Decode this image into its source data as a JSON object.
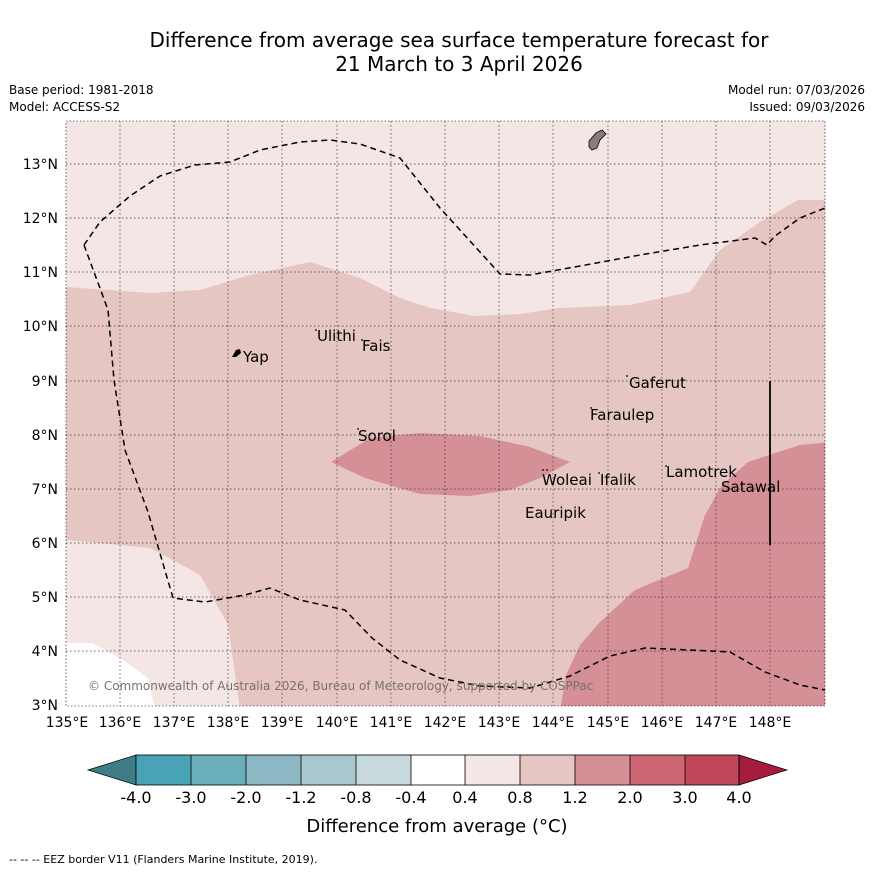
{
  "title": {
    "line1": "Difference from average sea surface temperature forecast for",
    "line2": "21 March to 3 April 2026"
  },
  "meta": {
    "base_period": "Base period: 1981-2018",
    "model": "Model: ACCESS-S2",
    "model_run": "Model run: 07/03/2026",
    "issued": "Issued: 09/03/2026"
  },
  "axes": {
    "lon_labels": [
      "135°E",
      "136°E",
      "137°E",
      "138°E",
      "139°E",
      "140°E",
      "141°E",
      "142°E",
      "143°E",
      "144°E",
      "145°E",
      "146°E",
      "147°E",
      "148°E"
    ],
    "lat_labels": [
      "13°N",
      "12°N",
      "11°N",
      "10°N",
      "9°N",
      "8°N",
      "7°N",
      "6°N",
      "5°N",
      "4°N",
      "3°N"
    ],
    "lon_range": [
      135,
      149
    ],
    "lat_range": [
      3,
      13.8
    ]
  },
  "places": {
    "yap": "Yap",
    "ulithi": "Ulithi",
    "fais": "Fais",
    "gaferut": "Gaferut",
    "faraulep": "Faraulep",
    "sorol": "Sorol",
    "woleai": "Woleai",
    "ifalik": "Ifalik",
    "lamotrek": "Lamotrek",
    "satawal": "Satawal",
    "eauripik": "Eauripik"
  },
  "copyright": "© Commonwealth of Australia 2026, Bureau of Meteorology, supported by COSPPac",
  "colorbar": {
    "ticks": [
      "-4.0",
      "-3.0",
      "-2.0",
      "-1.2",
      "-0.8",
      "-0.4",
      "0.4",
      "0.8",
      "1.2",
      "2.0",
      "3.0",
      "4.0"
    ],
    "title": "Difference from average (°C)",
    "colors": [
      "#3e7d87",
      "#48a3b6",
      "#6aaeba",
      "#8bb8c3",
      "#a9c8cd",
      "#c8d9dd",
      "#ffffff",
      "#f3e6e5",
      "#e6c6c2",
      "#d48f97",
      "#cc6672",
      "#be4656",
      "#a61c3c"
    ]
  },
  "fill_colors": {
    "c_0p4_0p8": "#f3e6e5",
    "c_0p8_1p2": "#e6c6c2",
    "c_1p2_2p0": "#d48f97"
  },
  "footer": "--  --  -- EEZ border V11 (Flanders Marine Institute, 2019)."
}
